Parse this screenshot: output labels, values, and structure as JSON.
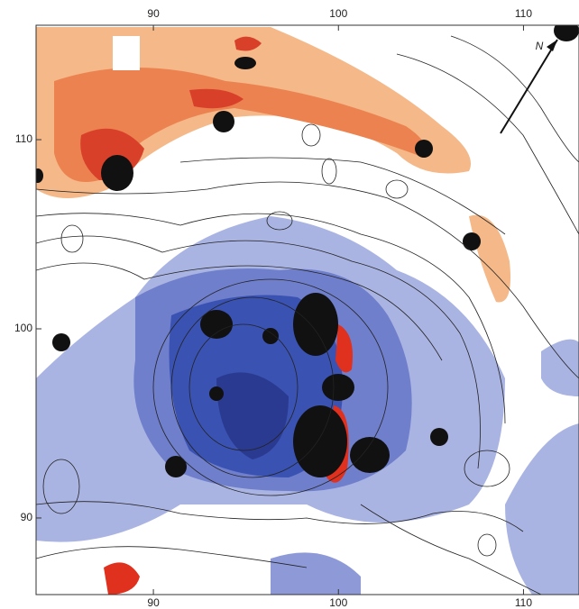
{
  "map": {
    "xlim": [
      83.66,
      113.0
    ],
    "ylim": [
      85.95,
      116.05
    ],
    "xticks": [
      90,
      100,
      110
    ],
    "yticks": [
      90,
      100,
      110
    ],
    "north_label": "N"
  }
}
